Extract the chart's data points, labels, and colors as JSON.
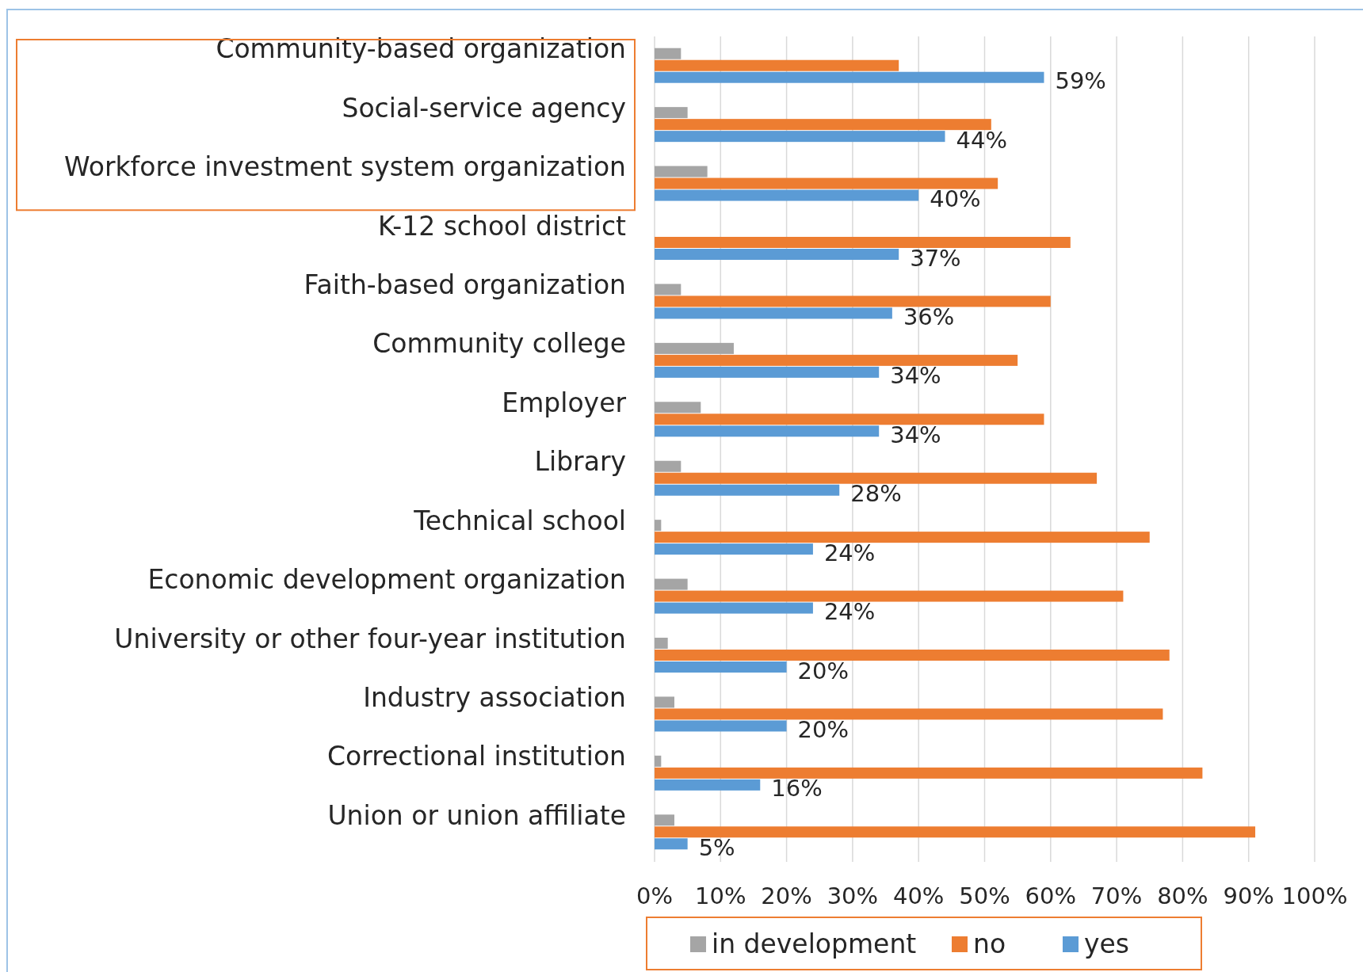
{
  "chart_data": {
    "type": "bar",
    "orientation": "horizontal",
    "categories": [
      "Community-based organization",
      "Social-service agency",
      "Workforce investment system organization",
      "K-12 school district",
      "Faith-based organization",
      "Community college",
      "Employer",
      "Library",
      "Technical school",
      "Economic development organization",
      "University or other four-year institution",
      "Industry association",
      "Correctional institution",
      "Union or union affiliate"
    ],
    "series": [
      {
        "name": "in development",
        "color": "#a5a5a5",
        "values": [
          4,
          5,
          8,
          0,
          4,
          12,
          7,
          4,
          1,
          5,
          2,
          3,
          1,
          3
        ]
      },
      {
        "name": "no",
        "color": "#ed7d31",
        "values": [
          37,
          51,
          52,
          63,
          60,
          55,
          59,
          67,
          75,
          71,
          78,
          77,
          83,
          91
        ]
      },
      {
        "name": "yes",
        "color": "#5b9bd5",
        "values": [
          59,
          44,
          40,
          37,
          36,
          34,
          34,
          28,
          24,
          24,
          20,
          20,
          16,
          5
        ],
        "value_labels": [
          "59%",
          "44%",
          "40%",
          "37%",
          "36%",
          "34%",
          "34%",
          "28%",
          "24%",
          "24%",
          "20%",
          "20%",
          "16%",
          "5%"
        ]
      }
    ],
    "xlim": [
      0,
      100
    ],
    "xticks": [
      {
        "value": 0,
        "label": "0%"
      },
      {
        "value": 10,
        "label": "10%"
      },
      {
        "value": 20,
        "label": "20%"
      },
      {
        "value": 30,
        "label": "30%"
      },
      {
        "value": 40,
        "label": "40%"
      },
      {
        "value": 50,
        "label": "50%"
      },
      {
        "value": 60,
        "label": "60%"
      },
      {
        "value": 70,
        "label": "70%"
      },
      {
        "value": 80,
        "label": "80%"
      },
      {
        "value": 90,
        "label": "90%"
      },
      {
        "value": 100,
        "label": "100%"
      }
    ],
    "grid": "x",
    "legend": "bottom"
  }
}
